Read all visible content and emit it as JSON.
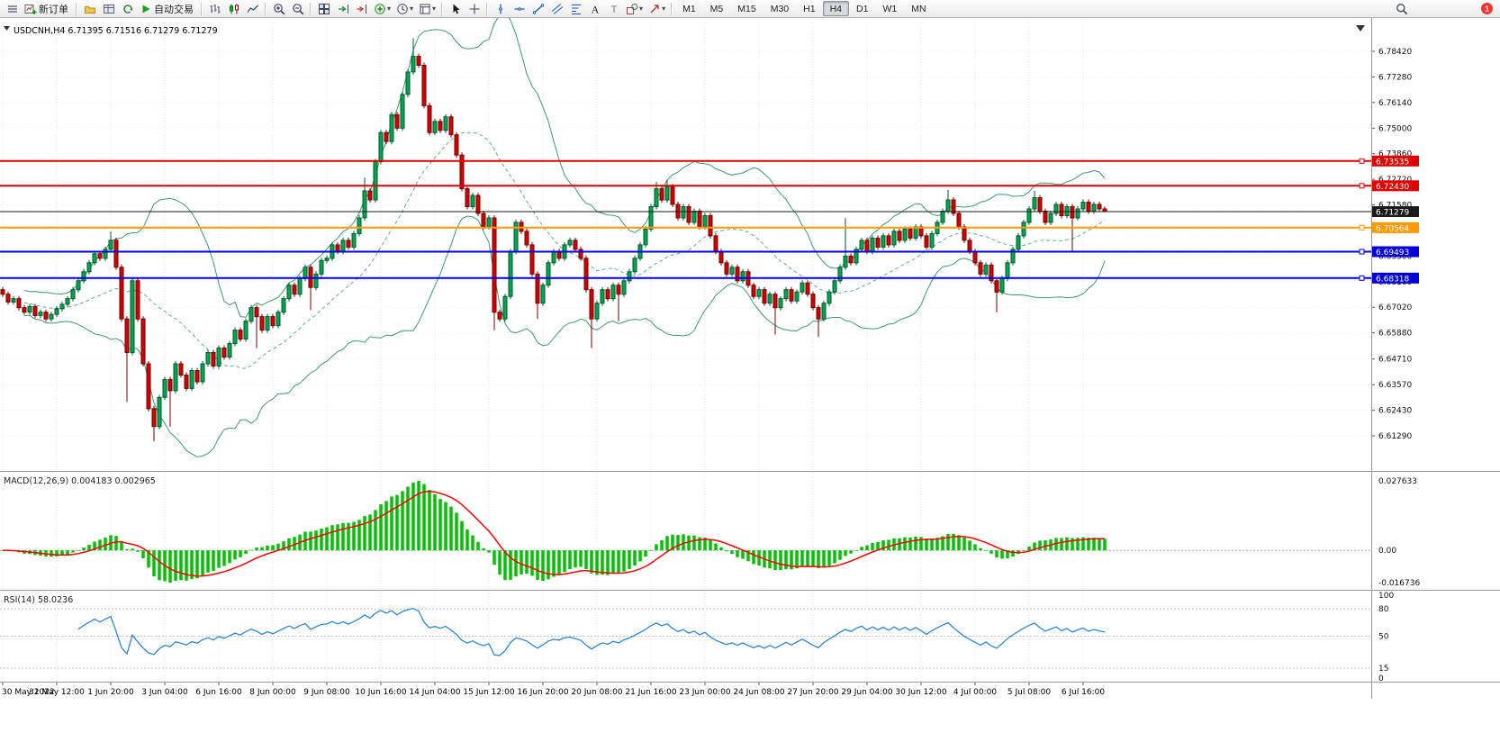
{
  "toolbar": {
    "groups": [
      {
        "items": [
          {
            "name": "window-menu-button",
            "icon": "menu"
          },
          {
            "name": "new-order-button",
            "icon": "new-order",
            "label": "新订单"
          }
        ]
      },
      {
        "items": [
          {
            "name": "profiles-button",
            "icon": "folder"
          },
          {
            "name": "market-watch-button",
            "icon": "grid"
          },
          {
            "name": "refresh-button",
            "icon": "refresh"
          },
          {
            "name": "autotrading-button",
            "icon": "play",
            "label": "自动交易"
          }
        ]
      },
      {
        "items": [
          {
            "name": "bar-chart-button",
            "icon": "bars"
          },
          {
            "name": "candlestick-chart-button",
            "icon": "candles"
          },
          {
            "name": "line-chart-button",
            "icon": "linechart"
          }
        ]
      },
      {
        "items": [
          {
            "name": "zoom-in-button",
            "icon": "zoom-in"
          },
          {
            "name": "zoom-out-button",
            "icon": "zoom-out"
          }
        ]
      },
      {
        "items": [
          {
            "name": "tile-windows-button",
            "icon": "tile"
          },
          {
            "name": "auto-scroll-button",
            "icon": "autoscroll"
          },
          {
            "name": "chart-shift-button",
            "icon": "shift"
          },
          {
            "name": "indicators-button",
            "icon": "indicators",
            "caret": true
          },
          {
            "name": "periods-button",
            "icon": "clock",
            "caret": true
          },
          {
            "name": "templates-button",
            "icon": "template",
            "caret": true
          }
        ]
      },
      {
        "items": [
          {
            "name": "cursor-button",
            "icon": "cursor"
          },
          {
            "name": "crosshair-button",
            "icon": "crosshair"
          }
        ]
      },
      {
        "items": [
          {
            "name": "vertical-line-button",
            "icon": "vline"
          },
          {
            "name": "horizontal-line-button",
            "icon": "hline"
          },
          {
            "name": "trendline-button",
            "icon": "trendline"
          },
          {
            "name": "equidistant-channel-button",
            "icon": "channel"
          },
          {
            "name": "fibonacci-button",
            "icon": "fibo"
          },
          {
            "name": "text-button",
            "icon": "text"
          },
          {
            "name": "label-button",
            "icon": "label"
          },
          {
            "name": "shapes-button",
            "icon": "shapes",
            "caret": true
          },
          {
            "name": "arrows-button",
            "icon": "arrow",
            "caret": true
          }
        ]
      },
      {
        "items": [
          {
            "name": "timeframe-m1-button",
            "label": "M1",
            "tf": true
          },
          {
            "name": "timeframe-m5-button",
            "label": "M5",
            "tf": true
          },
          {
            "name": "timeframe-m15-button",
            "label": "M15",
            "tf": true
          },
          {
            "name": "timeframe-m30-button",
            "label": "M30",
            "tf": true
          },
          {
            "name": "timeframe-h1-button",
            "label": "H1",
            "tf": true
          },
          {
            "name": "timeframe-h4-button",
            "label": "H4",
            "tf": true,
            "active": true
          },
          {
            "name": "timeframe-d1-button",
            "label": "D1",
            "tf": true
          },
          {
            "name": "timeframe-w1-button",
            "label": "W1",
            "tf": true
          },
          {
            "name": "timeframe-mn-button",
            "label": "MN",
            "tf": true
          }
        ]
      }
    ],
    "right_items": [
      {
        "name": "search-button",
        "icon": "search"
      },
      {
        "name": "notifications-badge",
        "label": "1",
        "badge": true
      }
    ]
  },
  "chart_data": [
    {
      "type": "candlestick",
      "title": "USDCNH,H4",
      "ohlc_label": {
        "open": "6.71395",
        "high": "6.71516",
        "low": "6.71279",
        "close": "6.71279"
      },
      "y_axis_ticks": [
        "6.78420",
        "6.77280",
        "6.76140",
        "6.75000",
        "6.73860",
        "6.72720",
        "6.71580",
        "6.70440",
        "6.69300",
        "6.68160",
        "6.67020",
        "6.65880",
        "6.64710",
        "6.63570",
        "6.62430",
        "6.61290"
      ],
      "x_axis_labels": [
        "30 May 2022",
        "31 May 12:00",
        "1 Jun 20:00",
        "3 Jun 04:00",
        "6 Jun 16:00",
        "8 Jun 00:00",
        "9 Jun 08:00",
        "10 Jun 16:00",
        "14 Jun 04:00",
        "15 Jun 12:00",
        "16 Jun 20:00",
        "20 Jun 08:00",
        "21 Jun 16:00",
        "23 Jun 00:00",
        "24 Jun 08:00",
        "27 Jun 20:00",
        "29 Jun 04:00",
        "30 Jun 12:00",
        "4 Jul 00:00",
        "5 Jul 08:00",
        "6 Jul 16:00"
      ],
      "bars_per_label": 10,
      "first_open": 6.678,
      "default_wick": 0.0012,
      "closes": [
        6.676,
        6.6725,
        6.674,
        6.67,
        6.668,
        6.6705,
        6.6665,
        6.668,
        6.665,
        6.667,
        6.6695,
        6.6715,
        6.674,
        6.678,
        6.682,
        6.686,
        6.69,
        6.694,
        6.692,
        6.696,
        6.7,
        6.688,
        6.665,
        6.65,
        6.682,
        6.665,
        6.645,
        6.625,
        6.617,
        6.63,
        6.638,
        6.633,
        6.645,
        6.64,
        6.634,
        6.642,
        6.637,
        6.645,
        6.65,
        6.644,
        6.652,
        6.648,
        6.654,
        6.66,
        6.656,
        6.664,
        6.67,
        6.666,
        6.66,
        6.666,
        6.662,
        6.668,
        6.674,
        6.68,
        6.676,
        6.683,
        6.688,
        6.679,
        6.685,
        6.691,
        6.692,
        6.698,
        6.695,
        6.7,
        6.697,
        6.703,
        6.71,
        6.722,
        6.718,
        6.735,
        6.748,
        6.744,
        6.756,
        6.75,
        6.765,
        6.775,
        6.782,
        6.778,
        6.76,
        6.748,
        6.753,
        6.749,
        6.755,
        6.747,
        6.738,
        6.723,
        6.715,
        6.72,
        6.712,
        6.706,
        6.71,
        6.668,
        6.665,
        6.675,
        6.695,
        6.708,
        6.704,
        6.698,
        6.685,
        6.672,
        6.68,
        6.69,
        6.695,
        6.692,
        6.698,
        6.7,
        6.696,
        6.692,
        6.678,
        6.665,
        6.672,
        6.678,
        6.674,
        6.68,
        6.676,
        6.682,
        6.686,
        6.692,
        6.698,
        6.705,
        6.715,
        6.723,
        6.718,
        6.724,
        6.716,
        6.71,
        6.715,
        6.708,
        6.713,
        6.706,
        6.711,
        6.702,
        6.695,
        6.69,
        6.685,
        6.688,
        6.682,
        6.686,
        6.68,
        6.675,
        6.678,
        6.672,
        6.676,
        6.67,
        6.674,
        6.678,
        6.673,
        6.677,
        6.681,
        6.676,
        6.67,
        6.665,
        6.672,
        6.677,
        6.682,
        6.688,
        6.693,
        6.69,
        6.696,
        6.7,
        6.695,
        6.701,
        6.697,
        6.702,
        6.698,
        6.704,
        6.7,
        6.705,
        6.701,
        6.706,
        6.702,
        6.697,
        6.703,
        6.708,
        6.713,
        6.718,
        6.712,
        6.706,
        6.7,
        6.695,
        6.69,
        6.685,
        6.689,
        6.682,
        6.677,
        6.683,
        6.69,
        6.696,
        6.702,
        6.708,
        6.714,
        6.719,
        6.713,
        6.708,
        6.712,
        6.716,
        6.711,
        6.715,
        6.71,
        6.714,
        6.717,
        6.713,
        6.716,
        6.714,
        6.71279
      ],
      "wick_overrides": {
        "20": [
          6.704,
          null
        ],
        "23": [
          null,
          6.628
        ],
        "28": [
          null,
          6.6105
        ],
        "31": [
          null,
          6.617
        ],
        "47": [
          null,
          6.652
        ],
        "57": [
          null,
          6.669
        ],
        "67": [
          6.728,
          null
        ],
        "76": [
          6.79,
          null
        ],
        "91": [
          null,
          6.66
        ],
        "99": [
          null,
          6.665
        ],
        "109": [
          null,
          6.652
        ],
        "114": [
          null,
          6.664
        ],
        "121": [
          6.726,
          null
        ],
        "123": [
          6.727,
          null
        ],
        "143": [
          null,
          6.658
        ],
        "151": [
          null,
          6.657
        ],
        "156": [
          6.71,
          null
        ],
        "175": [
          6.7225,
          null
        ],
        "184": [
          null,
          6.668
        ],
        "191": [
          6.722,
          null
        ],
        "198": [
          null,
          6.695
        ],
        "204": [
          6.71516,
          6.71279
        ]
      },
      "bollinger": {
        "period": 20,
        "deviations": 2,
        "color": "#3c9b6e"
      },
      "horizontal_levels": [
        {
          "price": 6.73535,
          "label": "6.73535",
          "color": "#e00000"
        },
        {
          "price": 6.7243,
          "label": "6.72430",
          "color": "#e00000"
        },
        {
          "price": 6.71279,
          "label": "6.71279",
          "color": "#1a1a1a",
          "is_current_price": true
        },
        {
          "price": 6.70564,
          "label": "6.70564",
          "color": "#ff9900"
        },
        {
          "price": 6.69493,
          "label": "6.69493",
          "color": "#0000dd"
        },
        {
          "price": 6.68318,
          "label": "6.68318",
          "color": "#0000dd"
        }
      ],
      "colors": {
        "up": "#00a651",
        "down": "#d40000",
        "up_border": "#00572b",
        "down_border": "#6e0000"
      }
    },
    {
      "type": "macd",
      "label": "MACD(12,26,9)",
      "values": [
        "0.004183",
        "0.002965"
      ],
      "fast": 12,
      "slow": 26,
      "signal": 9,
      "axis_labels": {
        "max": "0.027633",
        "zero": "0.00",
        "min": "-0.016736"
      },
      "histogram_color": "#00c000",
      "signal_color": "#ff0000"
    },
    {
      "type": "rsi",
      "label": "RSI(14)",
      "period": 14,
      "value": "58.0236",
      "axis_labels": [
        "100",
        "80",
        "50",
        "15",
        "0"
      ],
      "levels": [
        80,
        50,
        15
      ],
      "line_color": "#2f86d6"
    }
  ]
}
